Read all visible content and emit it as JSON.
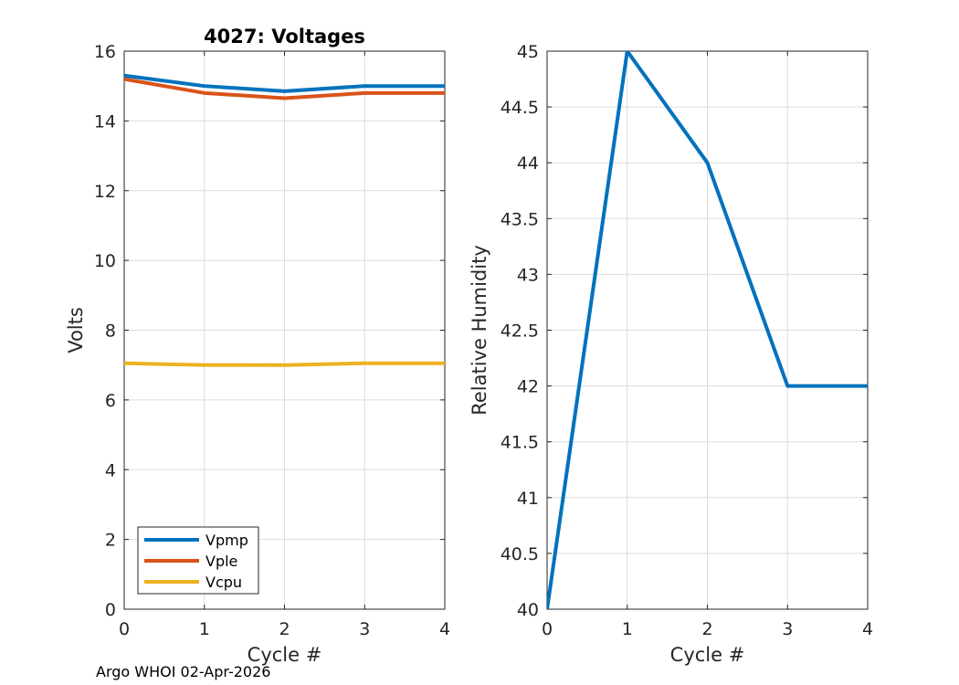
{
  "chart_data": [
    {
      "type": "line",
      "title": "4027: Voltages",
      "xlabel": "Cycle #",
      "ylabel": "Volts",
      "xlim": [
        0,
        4
      ],
      "ylim": [
        0,
        16
      ],
      "xticks": [
        0,
        1,
        2,
        3,
        4
      ],
      "yticks": [
        0,
        2,
        4,
        6,
        8,
        10,
        12,
        14,
        16
      ],
      "grid": true,
      "legend_position": "bottom-left",
      "x": [
        0,
        1,
        2,
        3,
        4
      ],
      "series": [
        {
          "name": "Vpmp",
          "color": "#0072BD",
          "values": [
            15.3,
            15.0,
            14.85,
            15.0,
            15.0
          ]
        },
        {
          "name": "Vple",
          "color": "#D95319",
          "values": [
            15.2,
            14.8,
            14.65,
            14.8,
            14.8
          ]
        },
        {
          "name": "Vcpu",
          "color": "#EDB120",
          "values": [
            7.05,
            7.0,
            7.0,
            7.05,
            7.05
          ]
        }
      ]
    },
    {
      "type": "line",
      "title": "",
      "xlabel": "Cycle #",
      "ylabel": "Relative Humidity",
      "xlim": [
        0,
        4
      ],
      "ylim": [
        40,
        45
      ],
      "xticks": [
        0,
        1,
        2,
        3,
        4
      ],
      "yticks": [
        40,
        40.5,
        41,
        41.5,
        42,
        42.5,
        43,
        43.5,
        44,
        44.5,
        45
      ],
      "grid": true,
      "x": [
        0,
        1,
        2,
        3,
        4
      ],
      "series": [
        {
          "name": "Relative Humidity",
          "color": "#0072BD",
          "values": [
            40,
            45,
            44,
            42,
            42
          ]
        }
      ]
    }
  ],
  "footer": "Argo WHOI 02-Apr-2026"
}
